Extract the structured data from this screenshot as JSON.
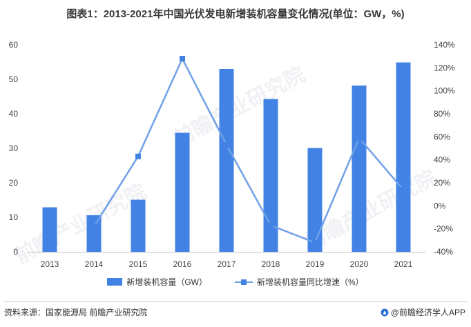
{
  "title": "图表1：2013-2021年中国光伏发电新增装机容量变化情况(单位：GW，%)",
  "source": "资料来源：国家能源局 前瞻产业研究院",
  "brand": "@前瞻经济学人APP",
  "watermark": "前瞻产业研究院",
  "colors": {
    "bar": "#4182e4",
    "line": "#6fa0e8",
    "marker": "#4182e4",
    "axis_text": "#404040"
  },
  "chart_data": {
    "type": "bar",
    "categories": [
      "2013",
      "2014",
      "2015",
      "2016",
      "2017",
      "2018",
      "2019",
      "2020",
      "2021"
    ],
    "series": [
      {
        "name": "新增装机容量（GW）",
        "type": "bar",
        "axis": "left",
        "values": [
          12.9,
          10.6,
          15.1,
          34.5,
          53.0,
          44.3,
          30.1,
          48.2,
          54.9
        ]
      },
      {
        "name": "新增装机容量同比增速（%）",
        "type": "line",
        "axis": "right",
        "values": [
          null,
          -18,
          43,
          128,
          53,
          -17,
          -32,
          59,
          14
        ]
      }
    ],
    "ylim_left": [
      0,
      60
    ],
    "yticks_left": [
      0,
      10,
      20,
      30,
      40,
      50,
      60
    ],
    "ylim_right": [
      -40,
      140
    ],
    "yticks_right": [
      "-40%",
      "-20%",
      "0%",
      "20%",
      "40%",
      "60%",
      "80%",
      "100%",
      "120%",
      "140%"
    ],
    "grid": false,
    "legend_position": "bottom"
  }
}
